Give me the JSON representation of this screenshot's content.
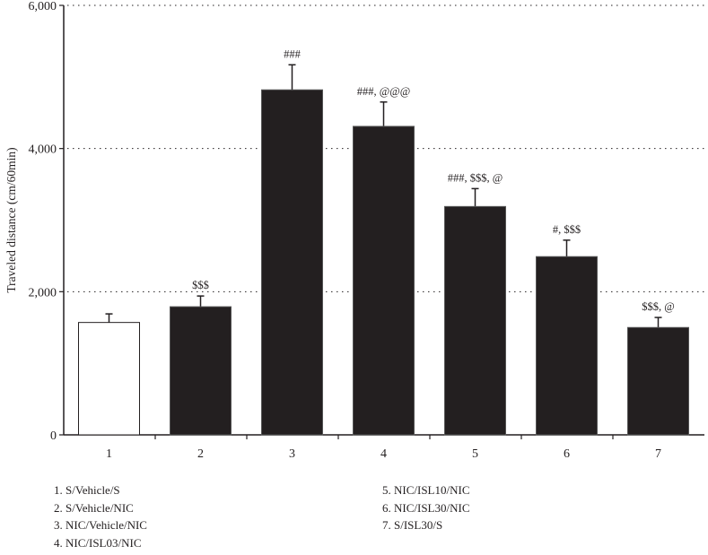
{
  "chart_data": {
    "type": "bar",
    "title": "",
    "xlabel": "",
    "ylabel": "Traveled distance (cm/60min)",
    "ylim": [
      0,
      6000
    ],
    "yticks": [
      0,
      2000,
      4000,
      6000
    ],
    "ytick_labels": [
      "0",
      "2,000",
      "4,000",
      "6,000"
    ],
    "grid": "horizontal dotted",
    "categories": [
      "1",
      "2",
      "3",
      "4",
      "5",
      "6",
      "7"
    ],
    "values": [
      1570,
      1790,
      4820,
      4310,
      3190,
      2490,
      1500
    ],
    "errors": [
      120,
      150,
      350,
      340,
      250,
      230,
      140
    ],
    "annotations": [
      "",
      "$$$",
      "###",
      "###, @@@",
      "###, $$$, @",
      "#, $$$",
      "$$$, @"
    ],
    "bar_colors": [
      "#ffffff",
      "#231f20",
      "#231f20",
      "#231f20",
      "#231f20",
      "#231f20",
      "#231f20"
    ],
    "legend": {
      "left": [
        "1. S/Vehicle/S",
        "2. S/Vehicle/NIC",
        "3. NIC/Vehicle/NIC",
        "4. NIC/ISL03/NIC"
      ],
      "right": [
        "5. NIC/ISL10/NIC",
        "6. NIC/ISL30/NIC",
        "7. S/ISL30/S"
      ]
    }
  }
}
